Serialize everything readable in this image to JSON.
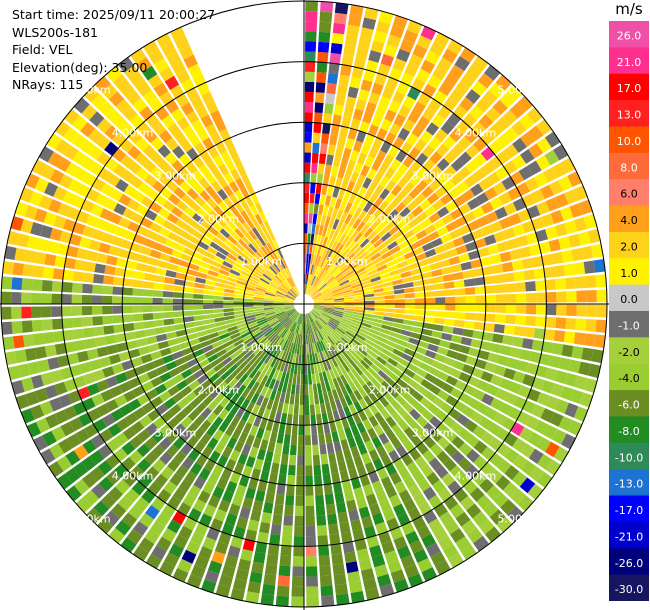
{
  "header": {
    "start_time": "Start time: 2025/09/11 20:00:27",
    "instrument": "WLS200s-181",
    "field": "Field: VEL",
    "elevation": "Elevation(deg): 35.00",
    "nrays": "NRays: 115"
  },
  "chart_data": {
    "type": "ppi",
    "field": "VEL",
    "units": "m/s",
    "max_range_km": 5.0,
    "range_rings_km": [
      1,
      2,
      3,
      4,
      5
    ],
    "ring_labels": [
      "1.00km",
      "2.00km",
      "3.00km",
      "4.00km",
      "5.00km"
    ],
    "colorbar": {
      "title": "m/s",
      "labels": [
        "26.0",
        "21.0",
        "17.0",
        "13.0",
        "10.0",
        "8.0",
        "6.0",
        "4.0",
        "2.0",
        "1.0",
        "0.0",
        "-1.0",
        "-2.0",
        "-4.0",
        "-6.0",
        "-8.0",
        "-10.0",
        "-13.0",
        "-17.0",
        "-21.0",
        "-26.0",
        "-30.0"
      ],
      "bins": [
        {
          "range": [
            26,
            30
          ],
          "color": "#f04fa8"
        },
        {
          "range": [
            21,
            26
          ],
          "color": "#ff2f8f"
        },
        {
          "range": [
            17,
            21
          ],
          "color": "#ff0000"
        },
        {
          "range": [
            13,
            17
          ],
          "color": "#ff2020"
        },
        {
          "range": [
            10,
            13
          ],
          "color": "#ff5500"
        },
        {
          "range": [
            8,
            10
          ],
          "color": "#ff6a3a"
        },
        {
          "range": [
            6,
            8
          ],
          "color": "#ff7f6a"
        },
        {
          "range": [
            4,
            6
          ],
          "color": "#ff9f1a"
        },
        {
          "range": [
            2,
            4
          ],
          "color": "#ffd21a"
        },
        {
          "range": [
            1,
            2
          ],
          "color": "#fff200"
        },
        {
          "range": [
            0,
            1
          ],
          "color": "#c8c8c8"
        },
        {
          "range": [
            -1,
            0
          ],
          "color": "#6e6e6e"
        },
        {
          "range": [
            -2,
            -1
          ],
          "color": "#a6cf3c"
        },
        {
          "range": [
            -4,
            -2
          ],
          "color": "#9acd32"
        },
        {
          "range": [
            -6,
            -4
          ],
          "color": "#6b8e23"
        },
        {
          "range": [
            -8,
            -6
          ],
          "color": "#228b22"
        },
        {
          "range": [
            -10,
            -8
          ],
          "color": "#2e8b57"
        },
        {
          "range": [
            -13,
            -10
          ],
          "color": "#1e73d2"
        },
        {
          "range": [
            -17,
            -13
          ],
          "color": "#0000ff"
        },
        {
          "range": [
            -21,
            -17
          ],
          "color": "#0000cd"
        },
        {
          "range": [
            -26,
            -21
          ],
          "color": "#00007a"
        },
        {
          "range": [
            -30,
            -26
          ],
          "color": "#151560"
        }
      ]
    },
    "sectors": [
      {
        "azimuth_deg": [
          0,
          10
        ],
        "velocity_ms": 26.0,
        "note": "aliased, mixed"
      },
      {
        "azimuth_deg": [
          10,
          100
        ],
        "velocity_ms": 3.0
      },
      {
        "azimuth_deg": [
          100,
          150
        ],
        "velocity_ms": -3.0
      },
      {
        "azimuth_deg": [
          150,
          250
        ],
        "velocity_ms": -5.0
      },
      {
        "azimuth_deg": [
          250,
          275
        ],
        "velocity_ms": -3.0
      },
      {
        "azimuth_deg": [
          275,
          335
        ],
        "velocity_ms": 3.0
      },
      {
        "azimuth_deg": [
          335,
          360
        ],
        "velocity_ms": null,
        "note": "no data"
      }
    ]
  }
}
